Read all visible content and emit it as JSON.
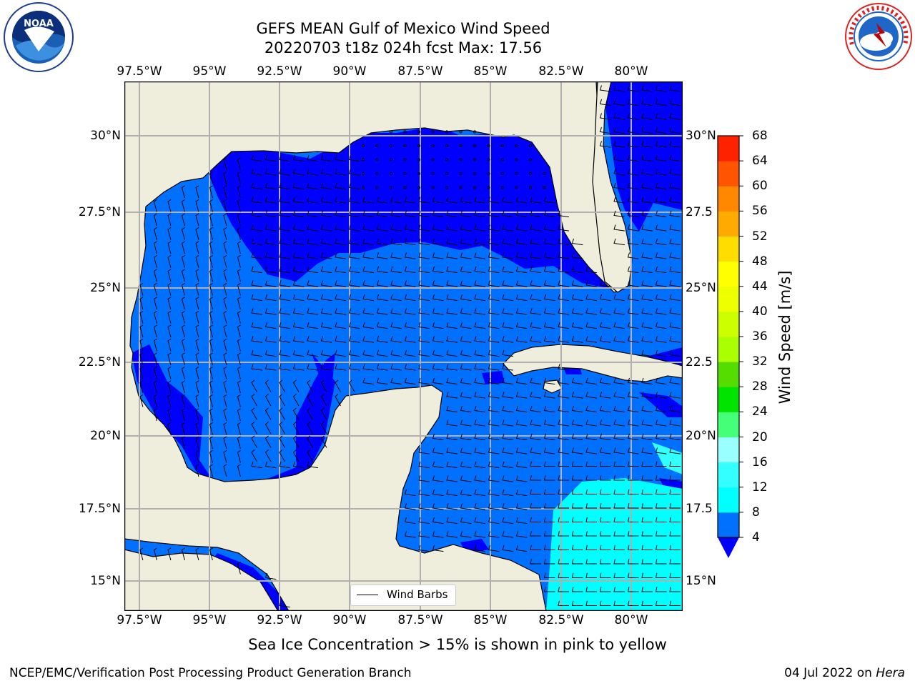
{
  "title": {
    "line1": "GEFS MEAN Gulf of Mexico Wind Speed",
    "line2": "20220703 t18z 024h fcst   Max: 17.56"
  },
  "map": {
    "lon_ticks": [
      "97.5°W",
      "95°W",
      "92.5°W",
      "90°W",
      "87.5°W",
      "85°W",
      "82.5°W",
      "80°W"
    ],
    "lat_ticks": [
      "30°N",
      "27.5°N",
      "25°N",
      "22.5°N",
      "20°N",
      "17.5°N",
      "15°N"
    ],
    "lat_ticks_right": [
      "30°N",
      "27.5",
      "25°N",
      "22.5",
      "20°N",
      "17.5",
      "15°N"
    ],
    "extent": {
      "lon": [
        -98,
        -78.2
      ],
      "lat": [
        14.1,
        31.8
      ]
    },
    "land_color": "#efeddc",
    "grid": true,
    "legend": {
      "label": "Wind Barbs",
      "position": "bottom-center"
    }
  },
  "colorbar": {
    "label": "Wind Speed [m/s]",
    "ticks": [
      "4",
      "8",
      "12",
      "16",
      "20",
      "24",
      "28",
      "32",
      "36",
      "40",
      "44",
      "48",
      "52",
      "56",
      "60",
      "64",
      "68"
    ],
    "colors": [
      "#0070ff",
      "#00ffff",
      "#33ffff",
      "#99ffff",
      "#44ff77",
      "#00e400",
      "#55dd00",
      "#aaff00",
      "#ccff00",
      "#eeff00",
      "#ffff00",
      "#ffdd00",
      "#ffaa00",
      "#ff8800",
      "#ff5500",
      "#ff2200"
    ],
    "underflow_color": "#0000ff"
  },
  "subtitle": "Sea Ice Concentration > 15% is shown in pink to yellow",
  "footer": {
    "left": "NCEP/EMC/Verification Post Processing Product Generation Branch",
    "right_date": "04 Jul 2022 on ",
    "right_host": "Hera"
  },
  "logos": {
    "left": {
      "center": "NOAA",
      "ring": "NATIONAL OCEANIC AND ATMOSPHERIC ADMINISTRATION · U.S. DEPARTMENT OF COMMERCE"
    },
    "right": {
      "ring": "NATIONAL WEATHER SERVICE"
    }
  }
}
